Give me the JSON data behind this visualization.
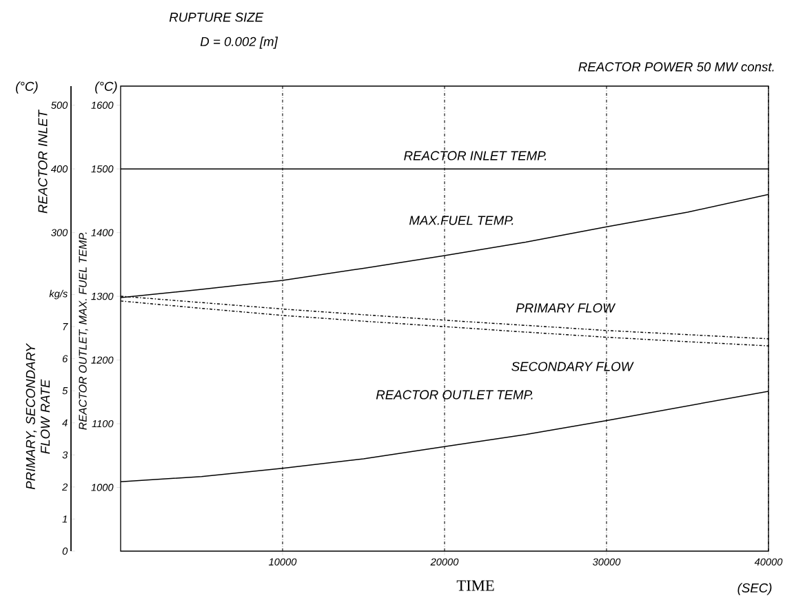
{
  "chart_data": {
    "type": "line",
    "title": "RUPTURE SIZE",
    "subtitle": "D = 0.002 [m]",
    "xlabel": "TIME",
    "ylabel": "REACTOR OUTLET, MAX. FUEL TEMP.",
    "y2label": "PRIMARY, SECONDARY FLOW RATE",
    "y3label": "REACTOR INLET",
    "annotations": [
      "REACTOR POWER 50 MW const.",
      "(°C)",
      "(°C)",
      "(SEC)"
    ],
    "x": [
      0,
      5000,
      10000,
      15000,
      20000,
      25000,
      30000,
      35000,
      40000
    ],
    "xlim": [
      0,
      40000
    ],
    "xticks": [
      10000,
      20000,
      30000,
      40000
    ],
    "ylim": [
      900,
      1630
    ],
    "yticks": [
      1000,
      1100,
      1200,
      1300,
      1400,
      1500,
      1600
    ],
    "y2lim": [
      0,
      14.5
    ],
    "y2ticks": [
      0,
      1,
      2,
      3,
      4,
      5,
      6,
      7,
      {
        "value": 8,
        "label": "kg/s"
      }
    ],
    "y3lim": [
      -200,
      530
    ],
    "y3ticks": [
      300,
      400,
      500
    ],
    "grid": "x",
    "series": [
      {
        "name": "REACTOR INLET TEMP.",
        "color": "#000000",
        "axis": "y3",
        "line_style": "solid",
        "values": [
          400,
          400,
          400,
          400,
          400,
          400,
          400,
          400,
          400
        ]
      },
      {
        "name": "MAX.FUEL TEMP.",
        "color": "#000000",
        "axis": "y",
        "line_style": "solid",
        "values": [
          1298,
          1311,
          1325,
          1344,
          1364,
          1385,
          1409,
          1432,
          1460
        ]
      },
      {
        "name": "PRIMARY FLOW",
        "color": "#000000",
        "axis": "y2",
        "line_style": "dashdot",
        "values": [
          7.95,
          7.75,
          7.55,
          7.37,
          7.2,
          7.04,
          6.88,
          6.75,
          6.62
        ]
      },
      {
        "name": "SECONDARY FLOW",
        "color": "#000000",
        "axis": "y2",
        "line_style": "dashdot",
        "values": [
          7.8,
          7.57,
          7.35,
          7.17,
          7.0,
          6.83,
          6.67,
          6.53,
          6.4
        ]
      },
      {
        "name": "REACTOR OUTLET TEMP.",
        "color": "#000000",
        "axis": "y",
        "line_style": "solid",
        "values": [
          1009,
          1017,
          1030,
          1045,
          1064,
          1083,
          1105,
          1128,
          1151
        ]
      }
    ]
  }
}
